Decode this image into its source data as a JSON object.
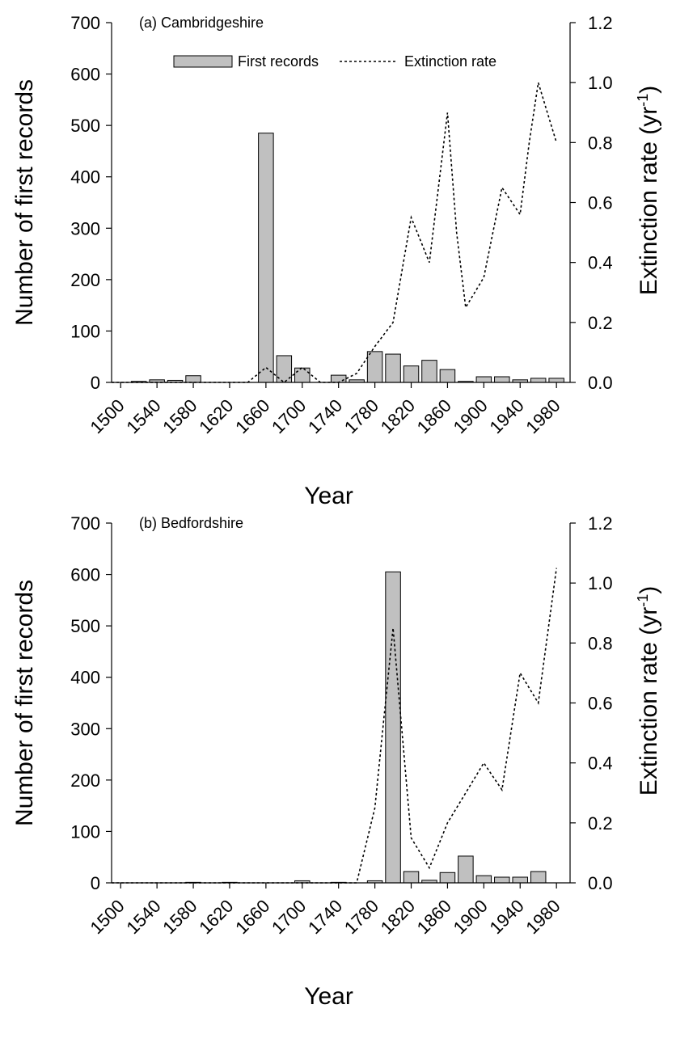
{
  "chart_data": [
    {
      "type": "bar",
      "title": "(a) Cambridgeshire",
      "xlabel": "Year",
      "ylabel": "Number of first records",
      "y2label_main": "Extinction rate (yr",
      "y2label_sup": "-1",
      "y2label_close": ")",
      "ylim": [
        0,
        700
      ],
      "y2lim": [
        0,
        1.2
      ],
      "yticks": [
        "0",
        "100",
        "200",
        "300",
        "400",
        "500",
        "600",
        "700"
      ],
      "y2ticks": [
        "0.0",
        "0.2",
        "0.4",
        "0.6",
        "0.8",
        "1.0",
        "1.2"
      ],
      "xtick_labels": [
        "1500",
        "1540",
        "1580",
        "1620",
        "1660",
        "1700",
        "1740",
        "1780",
        "1820",
        "1860",
        "1900",
        "1940",
        "1980"
      ],
      "legend": {
        "bars": "First records",
        "line": "Extinction rate",
        "placement": "top-center"
      },
      "categories": [
        1500,
        1520,
        1540,
        1560,
        1580,
        1600,
        1620,
        1640,
        1660,
        1680,
        1700,
        1720,
        1740,
        1760,
        1780,
        1800,
        1820,
        1840,
        1860,
        1880,
        1900,
        1920,
        1940,
        1960,
        1980
      ],
      "series": [
        {
          "name": "First records",
          "kind": "bar",
          "values": [
            0,
            2,
            5,
            4,
            13,
            0,
            0,
            0,
            485,
            52,
            28,
            0,
            14,
            5,
            60,
            55,
            32,
            43,
            25,
            2,
            11,
            11,
            5,
            8,
            8
          ]
        },
        {
          "name": "Extinction rate",
          "kind": "line",
          "axis": "right",
          "points": [
            [
              1490,
              0.0
            ],
            [
              1520,
              0.0
            ],
            [
              1540,
              0.0
            ],
            [
              1560,
              0.0
            ],
            [
              1580,
              0.0
            ],
            [
              1600,
              0.0
            ],
            [
              1620,
              0.0
            ],
            [
              1640,
              0.0
            ],
            [
              1660,
              0.05
            ],
            [
              1680,
              0.0
            ],
            [
              1700,
              0.05
            ],
            [
              1720,
              0.0
            ],
            [
              1740,
              0.0
            ],
            [
              1760,
              0.03
            ],
            [
              1780,
              0.12
            ],
            [
              1800,
              0.2
            ],
            [
              1820,
              0.55
            ],
            [
              1840,
              0.4
            ],
            [
              1860,
              0.9
            ],
            [
              1870,
              0.5
            ],
            [
              1880,
              0.25
            ],
            [
              1900,
              0.35
            ],
            [
              1920,
              0.65
            ],
            [
              1940,
              0.56
            ],
            [
              1950,
              0.8
            ],
            [
              1960,
              1.0
            ],
            [
              1970,
              0.9
            ],
            [
              1980,
              0.8
            ]
          ]
        }
      ]
    },
    {
      "type": "bar",
      "title": "(b) Bedfordshire",
      "xlabel": "Year",
      "ylabel": "Number of first records",
      "y2label_main": "Extinction rate (yr",
      "y2label_sup": "-1",
      "y2label_close": ")",
      "ylim": [
        0,
        700
      ],
      "y2lim": [
        0,
        1.2
      ],
      "yticks": [
        "0",
        "100",
        "200",
        "300",
        "400",
        "500",
        "600",
        "700"
      ],
      "y2ticks": [
        "0.0",
        "0.2",
        "0.4",
        "0.6",
        "0.8",
        "1.0",
        "1.2"
      ],
      "xtick_labels": [
        "1500",
        "1540",
        "1580",
        "1620",
        "1660",
        "1700",
        "1740",
        "1780",
        "1820",
        "1860",
        "1900",
        "1940",
        "1980"
      ],
      "categories": [
        1500,
        1520,
        1540,
        1560,
        1580,
        1600,
        1620,
        1640,
        1660,
        1680,
        1700,
        1720,
        1740,
        1760,
        1780,
        1800,
        1820,
        1840,
        1860,
        1880,
        1900,
        1920,
        1940,
        1960,
        1980
      ],
      "series": [
        {
          "name": "First records",
          "kind": "bar",
          "values": [
            0,
            0,
            0,
            0,
            1,
            0,
            1,
            0,
            0,
            0,
            4,
            0,
            1,
            0,
            4,
            605,
            22,
            5,
            20,
            52,
            14,
            11,
            11,
            22,
            0
          ]
        },
        {
          "name": "Extinction rate",
          "kind": "line",
          "axis": "right",
          "points": [
            [
              1490,
              0.0
            ],
            [
              1520,
              0.0
            ],
            [
              1540,
              0.0
            ],
            [
              1560,
              0.0
            ],
            [
              1580,
              0.0
            ],
            [
              1600,
              0.0
            ],
            [
              1620,
              0.0
            ],
            [
              1640,
              0.0
            ],
            [
              1660,
              0.0
            ],
            [
              1680,
              0.0
            ],
            [
              1700,
              0.0
            ],
            [
              1720,
              0.0
            ],
            [
              1740,
              0.0
            ],
            [
              1760,
              0.0
            ],
            [
              1780,
              0.25
            ],
            [
              1790,
              0.55
            ],
            [
              1800,
              0.85
            ],
            [
              1820,
              0.15
            ],
            [
              1840,
              0.05
            ],
            [
              1860,
              0.2
            ],
            [
              1880,
              0.3
            ],
            [
              1900,
              0.4
            ],
            [
              1920,
              0.31
            ],
            [
              1940,
              0.7
            ],
            [
              1960,
              0.6
            ],
            [
              1980,
              1.05
            ]
          ]
        }
      ]
    }
  ]
}
